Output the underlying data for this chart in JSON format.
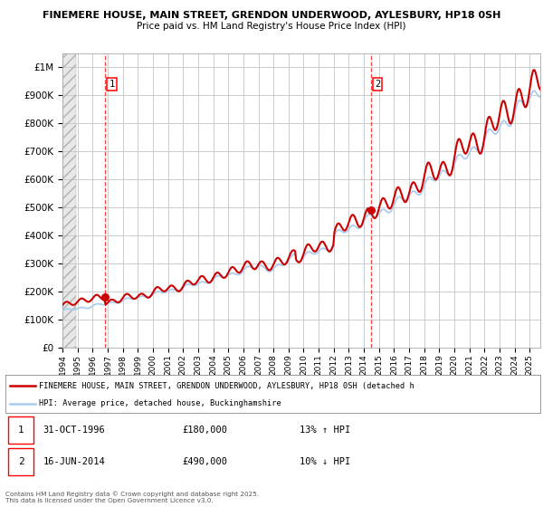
{
  "title_line1": "FINEMERE HOUSE, MAIN STREET, GRENDON UNDERWOOD, AYLESBURY, HP18 0SH",
  "title_line2": "Price paid vs. HM Land Registry's House Price Index (HPI)",
  "ylim": [
    0,
    1050000
  ],
  "xlim_start": 1994.0,
  "xlim_end": 2025.7,
  "grid_color": "#cccccc",
  "sale1_date": 1996.833,
  "sale1_price": 180000,
  "sale2_date": 2014.458,
  "sale2_price": 490000,
  "red_line_color": "#cc0000",
  "blue_line_color": "#aaccee",
  "legend_line1": "FINEMERE HOUSE, MAIN STREET, GRENDON UNDERWOOD, AYLESBURY, HP18 0SH (detached h",
  "legend_line2": "HPI: Average price, detached house, Buckinghamshire",
  "annotation1_date": "31-OCT-1996",
  "annotation1_price": "£180,000",
  "annotation1_hpi": "13% ↑ HPI",
  "annotation2_date": "16-JUN-2014",
  "annotation2_price": "£490,000",
  "annotation2_hpi": "10% ↓ HPI",
  "footer": "Contains HM Land Registry data © Crown copyright and database right 2025.\nThis data is licensed under the Open Government Licence v3.0.",
  "yticks": [
    0,
    100000,
    200000,
    300000,
    400000,
    500000,
    600000,
    700000,
    800000,
    900000,
    1000000
  ],
  "ytick_labels": [
    "£0",
    "£100K",
    "£200K",
    "£300K",
    "£400K",
    "£500K",
    "£600K",
    "£700K",
    "£800K",
    "£900K",
    "£1M"
  ]
}
